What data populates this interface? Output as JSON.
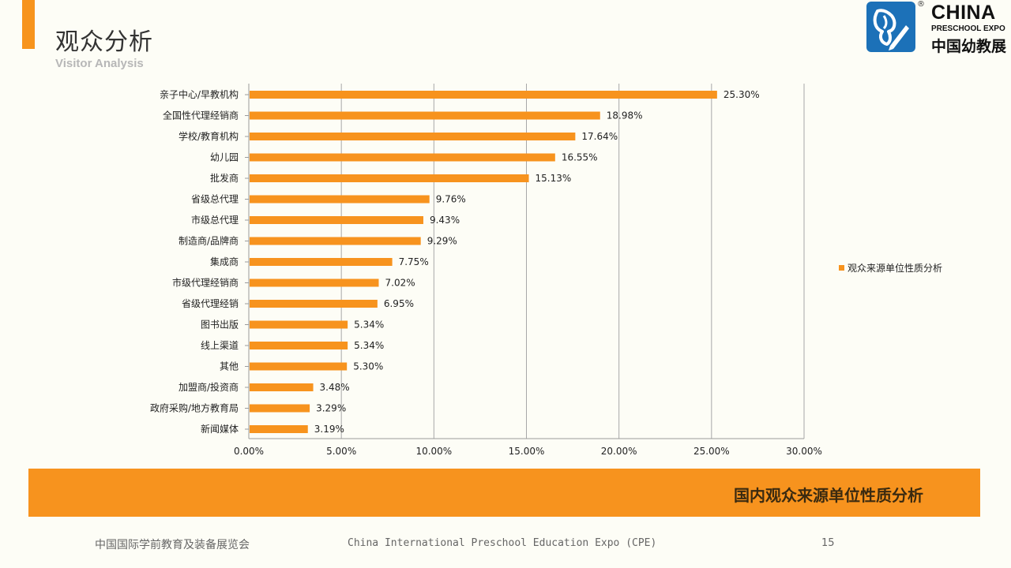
{
  "header": {
    "title": "观众分析",
    "subtitle": "Visitor Analysis"
  },
  "logo": {
    "line1": "CHINA",
    "line2": "PRESCHOOL EXPO",
    "line3": "中国幼教展",
    "reg": "®",
    "icon": "butterfly-pencil-logo-icon",
    "color": "#1c71b8"
  },
  "chart_data": {
    "type": "bar",
    "orientation": "horizontal",
    "categories": [
      "亲子中心/早教机构",
      "全国性代理经销商",
      "学校/教育机构",
      "幼儿园",
      "批发商",
      "省级总代理",
      "市级总代理",
      "制造商/品牌商",
      "集成商",
      "市级代理经销商",
      "省级代理经销",
      "图书出版",
      "线上渠道",
      "其他",
      "加盟商/投资商",
      "政府采购/地方教育局",
      "新闻媒体"
    ],
    "series": [
      {
        "name": "观众来源单位性质分析",
        "values": [
          25.3,
          18.98,
          17.64,
          16.55,
          15.13,
          9.76,
          9.43,
          9.29,
          7.75,
          7.02,
          6.95,
          5.34,
          5.34,
          5.3,
          3.48,
          3.29,
          3.19
        ],
        "labels": [
          "25.30%",
          "18.98%",
          "17.64%",
          "16.55%",
          "15.13%",
          "9.76%",
          "9.43%",
          "9.29%",
          "7.75%",
          "7.02%",
          "6.95%",
          "5.34%",
          "5.34%",
          "5.30%",
          "3.48%",
          "3.29%",
          "3.19%"
        ],
        "color": "#f7931e"
      }
    ],
    "xlim": [
      0,
      30
    ],
    "xticks": [
      "0.00%",
      "5.00%",
      "10.00%",
      "15.00%",
      "20.00%",
      "25.00%",
      "30.00%"
    ],
    "grid": true,
    "legend": "right"
  },
  "banner": {
    "text": "国内观众来源单位性质分析",
    "color": "#f7931e"
  },
  "footer": {
    "left": "中国国际学前教育及装备展览会",
    "mid": "China International Preschool Education Expo (CPE)",
    "page": "15"
  }
}
